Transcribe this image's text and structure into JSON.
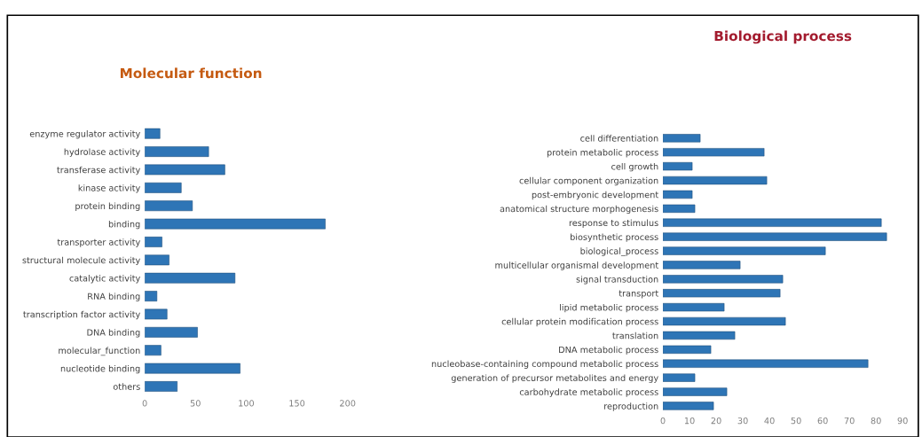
{
  "chart_data": [
    {
      "type": "bar",
      "orientation": "horizontal",
      "title": "Molecular function",
      "categories": [
        "enzyme regulator activity",
        "hydrolase activity",
        "transferase activity",
        "kinase activity",
        "protein binding",
        "binding",
        "transporter activity",
        "structural molecule activity",
        "catalytic activity",
        "RNA binding",
        "transcription factor activity",
        "DNA binding",
        "molecular_function",
        "nucleotide binding",
        "others"
      ],
      "values": [
        15,
        63,
        79,
        36,
        47,
        178,
        17,
        24,
        89,
        12,
        22,
        52,
        16,
        94,
        32
      ],
      "color": "#2e75b6",
      "xlim": [
        0,
        200
      ],
      "xticks": [
        0,
        50,
        100,
        150,
        200
      ],
      "grid": false
    },
    {
      "type": "bar",
      "orientation": "horizontal",
      "title": "Biological process",
      "categories": [
        "cell differentiation",
        "protein metabolic process",
        "cell growth",
        "cellular component organization",
        "post-embryonic development",
        "anatomical structure morphogenesis",
        "response to stimulus",
        "biosynthetic process",
        "biological_process",
        "multicellular organismal development",
        "signal transduction",
        "transport",
        "lipid metabolic process",
        "cellular protein modification process",
        "translation",
        "DNA metabolic process",
        "nucleobase-containing compound metabolic process",
        "generation of precursor metabolites and energy",
        "carbohydrate metabolic process",
        "reproduction"
      ],
      "values": [
        14,
        38,
        11,
        39,
        11,
        12,
        82,
        84,
        61,
        29,
        45,
        44,
        23,
        46,
        27,
        18,
        77,
        12,
        24,
        19
      ],
      "color": "#2e75b6",
      "xlim": [
        0,
        90
      ],
      "xticks": [
        0,
        10,
        20,
        30,
        40,
        50,
        60,
        70,
        80,
        90
      ],
      "grid": false
    }
  ]
}
